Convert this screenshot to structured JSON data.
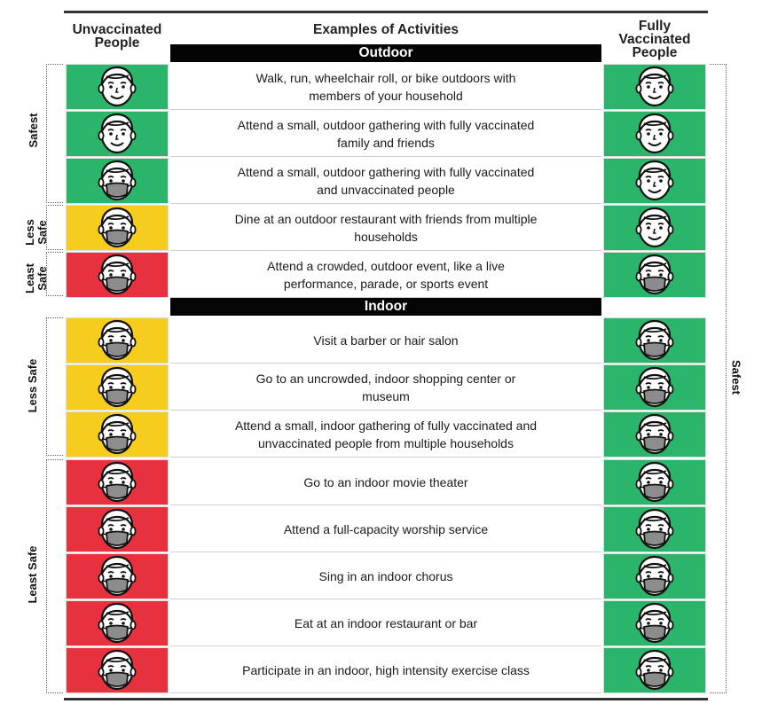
{
  "header": {
    "left": "Unvaccinated People",
    "middle": "Examples of Activities",
    "right": "Fully Vaccinated People"
  },
  "sections": {
    "outdoor": "Outdoor",
    "indoor": "Indoor"
  },
  "colors": {
    "green": "#2bb56a",
    "yellow": "#f6cd1c",
    "red": "#e8313f"
  },
  "left_groups": [
    {
      "label": "Safest"
    },
    {
      "label": "Less Safe"
    },
    {
      "label": "Least Safe"
    },
    {
      "label": "Less Safe"
    },
    {
      "label": "Least Safe"
    }
  ],
  "right_group": {
    "label": "Safest"
  },
  "rows": [
    {
      "activity": "Walk, run, wheelchair roll, or bike outdoors with members of your household",
      "unvax_color": "green",
      "unvax_mask": false,
      "vax_color": "green",
      "vax_mask": false
    },
    {
      "activity": "Attend a small, outdoor gathering with fully vaccinated family and friends",
      "unvax_color": "green",
      "unvax_mask": false,
      "vax_color": "green",
      "vax_mask": false
    },
    {
      "activity": "Attend a small, outdoor gathering with fully vaccinated and unvaccinated people",
      "unvax_color": "green",
      "unvax_mask": true,
      "vax_color": "green",
      "vax_mask": false
    },
    {
      "activity": "Dine at an outdoor restaurant with friends from multiple households",
      "unvax_color": "yellow",
      "unvax_mask": true,
      "vax_color": "green",
      "vax_mask": false
    },
    {
      "activity": "Attend a crowded, outdoor event, like a live performance, parade, or sports event",
      "unvax_color": "red",
      "unvax_mask": true,
      "vax_color": "green",
      "vax_mask": true
    },
    {
      "activity": "Visit a barber or hair salon",
      "unvax_color": "yellow",
      "unvax_mask": true,
      "vax_color": "green",
      "vax_mask": true
    },
    {
      "activity": "Go to an uncrowded, indoor shopping center or museum",
      "unvax_color": "yellow",
      "unvax_mask": true,
      "vax_color": "green",
      "vax_mask": true
    },
    {
      "activity": "Attend a small, indoor gathering of fully vaccinated and unvaccinated people from multiple households",
      "unvax_color": "yellow",
      "unvax_mask": true,
      "vax_color": "green",
      "vax_mask": true
    },
    {
      "activity": "Go to an indoor movie theater",
      "unvax_color": "red",
      "unvax_mask": true,
      "vax_color": "green",
      "vax_mask": true
    },
    {
      "activity": "Attend a full-capacity worship service",
      "unvax_color": "red",
      "unvax_mask": true,
      "vax_color": "green",
      "vax_mask": true
    },
    {
      "activity": "Sing in an indoor chorus",
      "unvax_color": "red",
      "unvax_mask": true,
      "vax_color": "green",
      "vax_mask": true
    },
    {
      "activity": "Eat at an indoor restaurant or bar",
      "unvax_color": "red",
      "unvax_mask": true,
      "vax_color": "green",
      "vax_mask": true
    },
    {
      "activity": "Participate in an indoor, high intensity exercise class",
      "unvax_color": "red",
      "unvax_mask": true,
      "vax_color": "green",
      "vax_mask": true
    }
  ]
}
